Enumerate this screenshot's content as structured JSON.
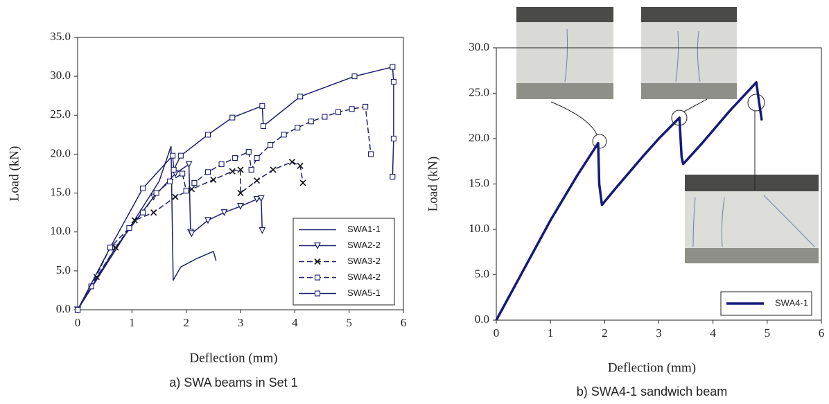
{
  "chart_data": [
    {
      "type": "line",
      "caption": "a) SWA beams in Set 1",
      "x_label": "Deflection (mm)",
      "y_label": "Load (kN)",
      "xlim": [
        0,
        6
      ],
      "xticks": [
        0,
        1,
        2,
        3,
        4,
        5,
        6
      ],
      "ylim": [
        0,
        35
      ],
      "yticks": [
        {
          "value": 0,
          "label": "0.0"
        },
        {
          "value": 5,
          "label": "5.0"
        },
        {
          "value": 10,
          "label": "10.0"
        },
        {
          "value": 15,
          "label": "15.0"
        },
        {
          "value": 20,
          "label": "20.0"
        },
        {
          "value": 25,
          "label": "25.0"
        },
        {
          "value": 30,
          "label": "30.0"
        },
        {
          "value": 35,
          "label": "35.0"
        }
      ],
      "legend": "lower right",
      "series": [
        {
          "name": "SWA1-1",
          "color": "#1b1f6b",
          "line_style": "solid",
          "marker": "none",
          "x": [
            0,
            0.5,
            1,
            1.5,
            1.72,
            1.76,
            1.9,
            2.2,
            2.5,
            2.55
          ],
          "values": [
            0,
            5.5,
            11,
            16.5,
            21,
            3.8,
            5.5,
            6.6,
            7.5,
            6.3
          ]
        },
        {
          "name": "SWA2-2",
          "color": "#1b1f6b",
          "line_style": "solid",
          "marker": "triangle",
          "x": [
            0,
            0.7,
            1.4,
            1.8,
            2.05,
            2.08,
            2.1,
            2.4,
            2.7,
            3.0,
            3.3,
            3.38,
            3.4
          ],
          "values": [
            0,
            8,
            14.5,
            17.5,
            18.7,
            10,
            9.8,
            11.5,
            12.5,
            13.3,
            14.2,
            14.3,
            10.2
          ]
        },
        {
          "name": "SWA3-2",
          "color": "#1b1f6b",
          "line_style": "dashed",
          "marker": "x",
          "x": [
            0,
            0.35,
            0.7,
            1.05,
            1.4,
            1.8,
            2.1,
            2.5,
            2.85,
            3.0,
            3.0,
            3.3,
            3.6,
            3.95,
            4.1,
            4.15
          ],
          "values": [
            0,
            4.2,
            8,
            11.5,
            12.5,
            14.5,
            15.5,
            16.7,
            17.8,
            18,
            15,
            16.6,
            18,
            19,
            18.5,
            16.3
          ]
        },
        {
          "name": "SWA4-2",
          "color": "#1b1f6b",
          "line_style": "dashed",
          "marker": "square",
          "x": [
            0,
            0.25,
            0.6,
            0.95,
            1.2,
            1.45,
            1.7,
            1.93,
            2.0,
            2.15,
            2.4,
            2.65,
            2.9,
            3.15,
            3.2,
            3.3,
            3.55,
            3.8,
            4.05,
            4.3,
            4.55,
            4.8,
            5.05,
            5.3,
            5.4
          ],
          "values": [
            0,
            3,
            8,
            10.5,
            12.5,
            15,
            16.5,
            17.5,
            15.3,
            16.3,
            17.7,
            18.7,
            19.5,
            20.3,
            18,
            19.5,
            21.2,
            22.5,
            23.4,
            24.2,
            24.8,
            25.4,
            25.8,
            26.1,
            20
          ]
        },
        {
          "name": "SWA5-1",
          "color": "#1b1f6b",
          "line_style": "solid",
          "marker": "square",
          "x": [
            0,
            0.6,
            1.2,
            1.75,
            1.77,
            1.9,
            2.4,
            2.85,
            3.4,
            3.42,
            4.1,
            5.1,
            5.8,
            5.82,
            5.82,
            5.8
          ],
          "values": [
            0,
            8,
            15.6,
            19.8,
            18,
            19.8,
            22.5,
            24.7,
            26.2,
            23.6,
            27.4,
            30,
            31.2,
            29.3,
            22,
            17.1
          ]
        }
      ]
    },
    {
      "type": "line",
      "caption": "b) SWA4-1 sandwich beam",
      "x_label": "Deflection (mm)",
      "y_label": "Load (kN)",
      "xlim": [
        0,
        6
      ],
      "xticks": [
        0,
        1,
        2,
        3,
        4,
        5,
        6
      ],
      "ylim": [
        0,
        30
      ],
      "yticks": [
        {
          "value": 0,
          "label": "0.0"
        },
        {
          "value": 5,
          "label": "5.0"
        },
        {
          "value": 10,
          "label": "10.0"
        },
        {
          "value": 15,
          "label": "15.0"
        },
        {
          "value": 20,
          "label": "20.0"
        },
        {
          "value": 25,
          "label": "25.0"
        },
        {
          "value": 30,
          "label": "30.0"
        }
      ],
      "legend": "lower right",
      "series": [
        {
          "name": "SWA4-1",
          "color": "#151a78",
          "line_style": "thick",
          "marker": "none",
          "x": [
            0,
            0.5,
            1,
            1.5,
            1.88,
            1.9,
            1.95,
            2.2,
            2.7,
            3.0,
            3.38,
            3.42,
            3.45,
            3.8,
            4.3,
            4.8,
            4.85,
            4.9
          ],
          "values": [
            0,
            5.5,
            11,
            16,
            19.5,
            15,
            12.7,
            14.5,
            18,
            20,
            22.3,
            18,
            17.2,
            19.5,
            23,
            26.2,
            24,
            22
          ]
        }
      ]
    }
  ]
}
